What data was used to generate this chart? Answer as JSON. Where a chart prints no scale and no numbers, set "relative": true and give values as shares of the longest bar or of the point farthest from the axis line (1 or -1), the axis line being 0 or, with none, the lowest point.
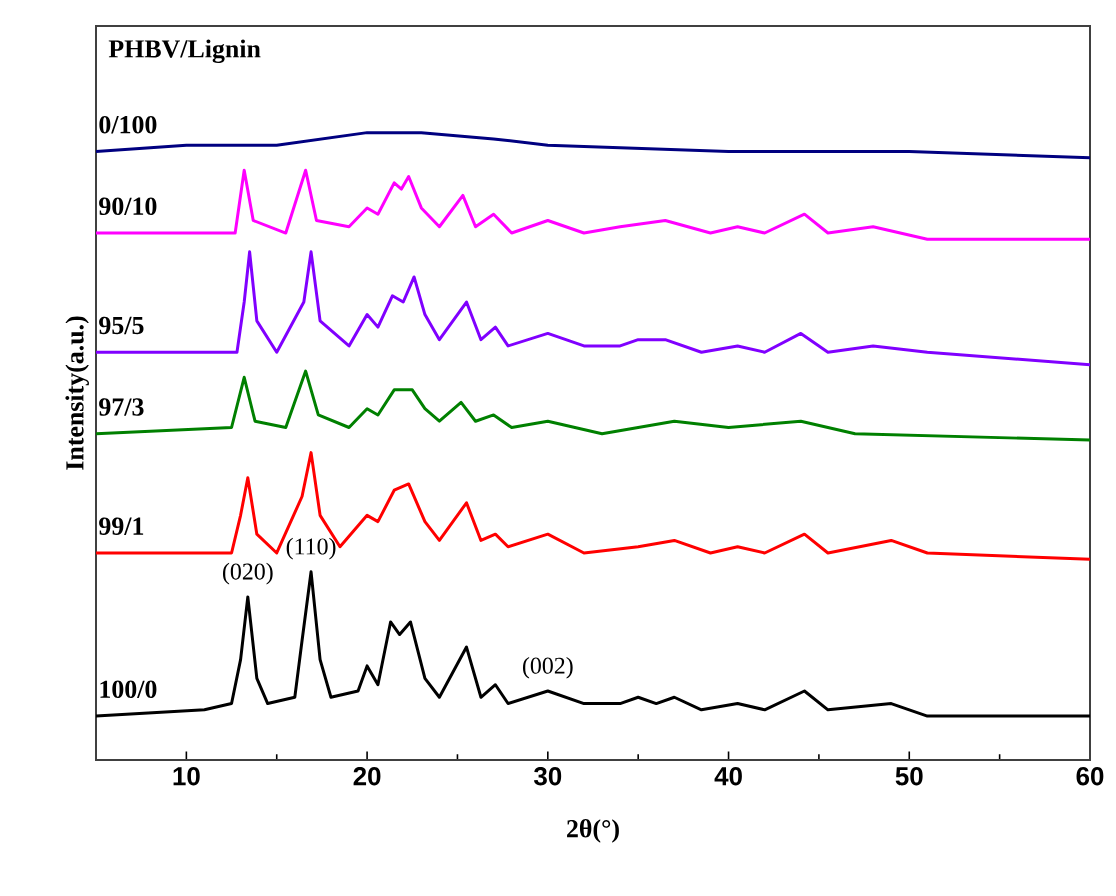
{
  "chart_data": {
    "type": "line",
    "relative": true,
    "legend_title": "PHBV/Lignin",
    "xlabel": "2θ(°)",
    "ylabel": "Intensity(a.u.)",
    "xlim": [
      5,
      60
    ],
    "xticks": [
      10,
      20,
      30,
      40,
      50,
      60
    ],
    "marker": "none",
    "line_style": "solid",
    "annotations": [
      {
        "text": "(020)",
        "x": 13.4,
        "y": 0.26
      },
      {
        "text": "(110)",
        "x": 16.9,
        "y": 0.3
      },
      {
        "text": "(002)",
        "x": 30,
        "y": 0.11
      }
    ],
    "series": [
      {
        "name": "0/100",
        "color": "#000080",
        "x": [
          5,
          10,
          15,
          20,
          23,
          27,
          30,
          40,
          50,
          60
        ],
        "values": [
          0.97,
          0.98,
          0.98,
          1.0,
          1.0,
          0.99,
          0.98,
          0.97,
          0.97,
          0.96
        ]
      },
      {
        "name": "90/10",
        "color": "#ff00ff",
        "x": [
          5,
          12.7,
          13.2,
          13.7,
          15.5,
          16.6,
          17.2,
          19,
          20,
          20.6,
          21.5,
          21.9,
          22.3,
          23,
          24,
          25.3,
          26,
          27,
          28,
          30,
          32,
          34,
          36.5,
          39,
          40.5,
          42,
          44.2,
          45.5,
          48,
          51,
          60
        ],
        "values": [
          0.84,
          0.84,
          0.94,
          0.86,
          0.84,
          0.94,
          0.86,
          0.85,
          0.88,
          0.87,
          0.92,
          0.91,
          0.93,
          0.88,
          0.85,
          0.9,
          0.85,
          0.87,
          0.84,
          0.86,
          0.84,
          0.85,
          0.86,
          0.84,
          0.85,
          0.84,
          0.87,
          0.84,
          0.85,
          0.83,
          0.83
        ]
      },
      {
        "name": "95/5",
        "color": "#8000ff",
        "x": [
          5,
          12.8,
          13.2,
          13.5,
          13.9,
          15,
          16.5,
          16.9,
          17.4,
          19,
          20,
          20.6,
          21.4,
          22,
          22.6,
          23.2,
          24,
          25.5,
          26.3,
          27.1,
          27.8,
          30,
          32,
          34,
          35,
          36.5,
          38.5,
          40.5,
          42,
          44,
          45.5,
          48,
          51,
          60
        ],
        "values": [
          0.65,
          0.65,
          0.73,
          0.81,
          0.7,
          0.65,
          0.73,
          0.81,
          0.7,
          0.66,
          0.71,
          0.69,
          0.74,
          0.73,
          0.77,
          0.71,
          0.67,
          0.73,
          0.67,
          0.69,
          0.66,
          0.68,
          0.66,
          0.66,
          0.67,
          0.67,
          0.65,
          0.66,
          0.65,
          0.68,
          0.65,
          0.66,
          0.65,
          0.63
        ]
      },
      {
        "name": "97/3",
        "color": "#008000",
        "x": [
          5,
          12.5,
          13.2,
          13.8,
          15.5,
          16.6,
          17.3,
          19,
          20,
          20.6,
          21.5,
          22.5,
          23.2,
          24,
          25.2,
          26,
          27,
          28,
          30,
          33,
          37,
          40,
          44,
          47,
          60
        ],
        "values": [
          0.52,
          0.53,
          0.61,
          0.54,
          0.53,
          0.62,
          0.55,
          0.53,
          0.56,
          0.55,
          0.59,
          0.59,
          0.56,
          0.54,
          0.57,
          0.54,
          0.55,
          0.53,
          0.54,
          0.52,
          0.54,
          0.53,
          0.54,
          0.52,
          0.51
        ]
      },
      {
        "name": "99/1",
        "color": "#ff0000",
        "x": [
          5,
          12.5,
          13,
          13.4,
          13.9,
          15,
          16.4,
          16.9,
          17.4,
          18.5,
          20,
          20.6,
          21.5,
          22.3,
          23.2,
          24,
          25.5,
          26.3,
          27.1,
          27.8,
          30,
          32,
          35,
          37,
          39,
          40.5,
          42,
          44.2,
          45.5,
          49,
          51,
          60
        ],
        "values": [
          0.33,
          0.33,
          0.39,
          0.45,
          0.36,
          0.33,
          0.42,
          0.49,
          0.39,
          0.34,
          0.39,
          0.38,
          0.43,
          0.44,
          0.38,
          0.35,
          0.41,
          0.35,
          0.36,
          0.34,
          0.36,
          0.33,
          0.34,
          0.35,
          0.33,
          0.34,
          0.33,
          0.36,
          0.33,
          0.35,
          0.33,
          0.32
        ]
      },
      {
        "name": "100/0",
        "color": "#000000",
        "x": [
          5,
          11,
          12.5,
          13,
          13.4,
          13.9,
          14.5,
          16,
          16.4,
          16.9,
          17.4,
          18,
          19.5,
          20,
          20.6,
          21.3,
          21.8,
          22.4,
          23.2,
          24,
          25.5,
          26.3,
          27.1,
          27.8,
          30,
          32,
          34,
          35,
          36,
          37,
          38.5,
          40.5,
          42,
          44.2,
          45.5,
          49,
          51,
          60
        ],
        "values": [
          0.07,
          0.08,
          0.09,
          0.16,
          0.26,
          0.13,
          0.09,
          0.1,
          0.19,
          0.3,
          0.16,
          0.1,
          0.11,
          0.15,
          0.12,
          0.22,
          0.2,
          0.22,
          0.13,
          0.1,
          0.18,
          0.1,
          0.12,
          0.09,
          0.11,
          0.09,
          0.09,
          0.1,
          0.09,
          0.1,
          0.08,
          0.09,
          0.08,
          0.11,
          0.08,
          0.09,
          0.07,
          0.07
        ]
      }
    ]
  }
}
